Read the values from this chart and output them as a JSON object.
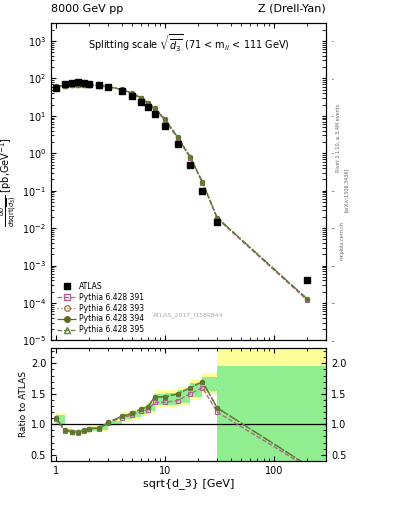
{
  "title_left": "8000 GeV pp",
  "title_right": "Z (Drell-Yan)",
  "plot_title": "Splitting scale $\\sqrt{\\overline{d_3}}$ (71 < m$_{ll}$ < 111 GeV)",
  "watermark": "ATLAS_2017_I1589844",
  "xlabel": "sqrt{d_3} [GeV]",
  "ylabel_main": "dσ\n/dsqrt(d_3)",
  "ylabel_ratio": "Ratio to ATLAS",
  "xlim": [
    0.9,
    300
  ],
  "ylim_main": [
    1e-05,
    3000.0
  ],
  "ylim_ratio": [
    0.4,
    2.25
  ],
  "atlas_x": [
    1.0,
    1.2,
    1.4,
    1.6,
    1.8,
    2.0,
    2.5,
    3.0,
    4.0,
    5.0,
    6.0,
    7.0,
    8.0,
    10.0,
    13.0,
    17.0,
    22.0,
    30.0,
    200.0
  ],
  "atlas_y": [
    55,
    70,
    75,
    78,
    75,
    72,
    68,
    58,
    45,
    34,
    24,
    17,
    11,
    5.5,
    1.8,
    0.5,
    0.1,
    0.015,
    0.0004
  ],
  "py391_x": [
    1.0,
    1.2,
    1.4,
    1.6,
    1.8,
    2.0,
    2.5,
    3.0,
    4.0,
    5.0,
    6.0,
    7.0,
    8.0,
    10.0,
    13.0,
    17.0,
    22.0,
    30.0,
    200.0
  ],
  "py391_y": [
    60,
    62,
    65,
    67,
    67,
    66,
    63,
    59,
    50,
    39,
    29,
    21,
    15,
    7.5,
    2.5,
    0.75,
    0.16,
    0.018,
    0.00012
  ],
  "py393_x": [
    1.0,
    1.2,
    1.4,
    1.6,
    1.8,
    2.0,
    2.5,
    3.0,
    4.0,
    5.0,
    6.0,
    7.0,
    8.0,
    10.0,
    13.0,
    17.0,
    22.0,
    30.0,
    200.0
  ],
  "py393_y": [
    61,
    63,
    66,
    68,
    68,
    67,
    64,
    60,
    51,
    40,
    30,
    22,
    16,
    8.0,
    2.7,
    0.8,
    0.17,
    0.019,
    0.00013
  ],
  "py394_x": [
    1.0,
    1.2,
    1.4,
    1.6,
    1.8,
    2.0,
    2.5,
    3.0,
    4.0,
    5.0,
    6.0,
    7.0,
    8.0,
    10.0,
    13.0,
    17.0,
    22.0,
    30.0,
    200.0
  ],
  "py394_y": [
    61,
    63,
    66,
    68,
    68,
    67,
    64,
    60,
    51,
    40,
    30,
    22,
    16,
    8.0,
    2.7,
    0.8,
    0.17,
    0.019,
    0.00013
  ],
  "py395_x": [
    1.0,
    1.2,
    1.4,
    1.6,
    1.8,
    2.0,
    2.5,
    3.0,
    4.0,
    5.0,
    6.0,
    7.0,
    8.0,
    10.0,
    13.0,
    17.0,
    22.0,
    30.0,
    200.0
  ],
  "py395_y": [
    61,
    63,
    66,
    68,
    68,
    67,
    64,
    60,
    51,
    40,
    30,
    22,
    16,
    8.0,
    2.7,
    0.8,
    0.17,
    0.019,
    0.00013
  ],
  "ratio391_y": [
    1.09,
    0.89,
    0.87,
    0.86,
    0.89,
    0.92,
    0.93,
    1.02,
    1.11,
    1.15,
    1.21,
    1.24,
    1.36,
    1.36,
    1.39,
    1.5,
    1.6,
    1.2,
    0.3
  ],
  "ratio393_y": [
    1.11,
    0.9,
    0.88,
    0.87,
    0.91,
    0.93,
    0.94,
    1.03,
    1.13,
    1.18,
    1.25,
    1.29,
    1.45,
    1.45,
    1.5,
    1.6,
    1.7,
    1.27,
    0.33
  ],
  "ratio394_y": [
    1.11,
    0.9,
    0.88,
    0.87,
    0.91,
    0.93,
    0.94,
    1.03,
    1.13,
    1.18,
    1.25,
    1.29,
    1.45,
    1.45,
    1.5,
    1.6,
    1.7,
    1.27,
    0.33
  ],
  "ratio395_y": [
    1.11,
    0.9,
    0.88,
    0.87,
    0.91,
    0.93,
    0.94,
    1.03,
    1.13,
    1.18,
    1.25,
    1.29,
    1.45,
    1.45,
    1.5,
    1.6,
    1.7,
    1.27,
    0.33
  ],
  "band_x": [
    1.0,
    1.2,
    1.4,
    1.6,
    1.8,
    2.0,
    2.5,
    3.0,
    4.0,
    5.0,
    6.0,
    7.0,
    8.0,
    10.0,
    13.0,
    17.0,
    22.0,
    30.0
  ],
  "band_low_y": [
    0.97,
    0.85,
    0.83,
    0.82,
    0.85,
    0.87,
    0.88,
    0.97,
    1.06,
    1.09,
    1.14,
    1.17,
    1.28,
    1.28,
    1.3,
    1.4,
    1.5,
    1.12
  ],
  "band_high_y": [
    1.19,
    0.96,
    0.93,
    0.92,
    0.96,
    0.98,
    1.0,
    1.09,
    1.2,
    1.25,
    1.32,
    1.38,
    1.56,
    1.57,
    1.62,
    1.73,
    1.84,
    1.38
  ],
  "band_low_g": [
    1.0,
    0.87,
    0.85,
    0.84,
    0.87,
    0.89,
    0.9,
    0.99,
    1.08,
    1.12,
    1.17,
    1.21,
    1.32,
    1.32,
    1.35,
    1.44,
    1.55,
    1.16
  ],
  "band_high_g": [
    1.16,
    0.93,
    0.91,
    0.9,
    0.94,
    0.96,
    0.98,
    1.06,
    1.17,
    1.22,
    1.28,
    1.35,
    1.5,
    1.51,
    1.56,
    1.68,
    1.78,
    1.34
  ],
  "big_rect_x_start": 30.0,
  "big_rect_x_end": 300.0,
  "big_yellow_low": 0.4,
  "big_yellow_high": 2.25,
  "big_green_low": 0.4,
  "big_green_high": 1.95,
  "color_atlas": "#000000",
  "color_py391": "#b06090",
  "color_py393": "#a07840",
  "color_py394": "#606820",
  "color_py395": "#608040",
  "color_yellow_band": "#ffff99",
  "color_green_band": "#90ee90",
  "right_text1": "Rivet 3.1.10, ≥ 3.4M events",
  "right_text2": "[arXiv:1306.3436]",
  "right_text3": "mcplots.cern.ch"
}
